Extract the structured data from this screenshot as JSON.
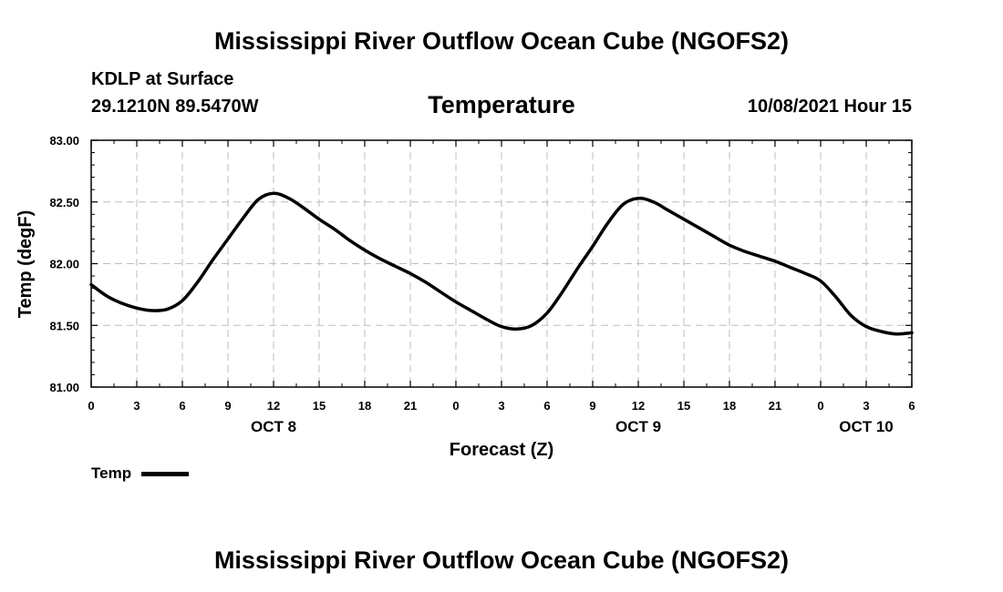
{
  "header": {
    "title_top": "Mississippi River Outflow Ocean Cube (NGOFS2)",
    "station": "KDLP at Surface",
    "coords": "29.1210N  89.5470W",
    "variable": "Temperature",
    "datetime": "10/08/2021 Hour 15",
    "title_bottom": "Mississippi River Outflow Ocean Cube (NGOFS2)"
  },
  "legend": {
    "label": "Temp"
  },
  "colors": {
    "line": "#000000",
    "grid": "#bdbdbd",
    "background": "#ffffff"
  },
  "chart_data": {
    "type": "line",
    "title": "Temperature",
    "xlabel": "Forecast (Z)",
    "ylabel": "Temp (degF)",
    "xlim": [
      0,
      54
    ],
    "ylim": [
      81.0,
      83.0
    ],
    "x_ticks": [
      0,
      3,
      6,
      9,
      12,
      15,
      18,
      21,
      24,
      27,
      30,
      33,
      36,
      39,
      42,
      45,
      48,
      51,
      54
    ],
    "x_tick_labels": [
      "0",
      "3",
      "6",
      "9",
      "12",
      "15",
      "18",
      "21",
      "0",
      "3",
      "6",
      "9",
      "12",
      "15",
      "18",
      "21",
      "0",
      "3",
      "6"
    ],
    "y_ticks": [
      81.0,
      81.5,
      82.0,
      82.5,
      83.0
    ],
    "y_tick_labels": [
      "81.00",
      "81.50",
      "82.00",
      "82.50",
      "83.00"
    ],
    "day_labels": [
      {
        "x": 12,
        "label": "OCT 8"
      },
      {
        "x": 36,
        "label": "OCT 9"
      },
      {
        "x": 51,
        "label": "OCT 10"
      }
    ],
    "grid": true,
    "series": [
      {
        "name": "Temp",
        "x": [
          0,
          1,
          2,
          3,
          4,
          5,
          6,
          7,
          8,
          9,
          10,
          11,
          12,
          13,
          14,
          15,
          16,
          17,
          18,
          19,
          20,
          21,
          22,
          23,
          24,
          25,
          26,
          27,
          28,
          29,
          30,
          31,
          32,
          33,
          34,
          35,
          36,
          37,
          38,
          39,
          40,
          41,
          42,
          43,
          44,
          45,
          46,
          47,
          48,
          49,
          50,
          51,
          52,
          53,
          54
        ],
        "values": [
          81.83,
          81.74,
          81.68,
          81.64,
          81.62,
          81.63,
          81.7,
          81.85,
          82.03,
          82.2,
          82.37,
          82.52,
          82.57,
          82.53,
          82.45,
          82.36,
          82.28,
          82.19,
          82.11,
          82.04,
          81.98,
          81.92,
          81.85,
          81.77,
          81.69,
          81.62,
          81.55,
          81.49,
          81.47,
          81.5,
          81.6,
          81.77,
          81.96,
          82.14,
          82.33,
          82.48,
          82.53,
          82.5,
          82.43,
          82.36,
          82.29,
          82.22,
          82.15,
          82.1,
          82.06,
          82.02,
          81.97,
          81.92,
          81.86,
          81.73,
          81.58,
          81.49,
          81.45,
          81.43,
          81.44
        ]
      }
    ]
  }
}
